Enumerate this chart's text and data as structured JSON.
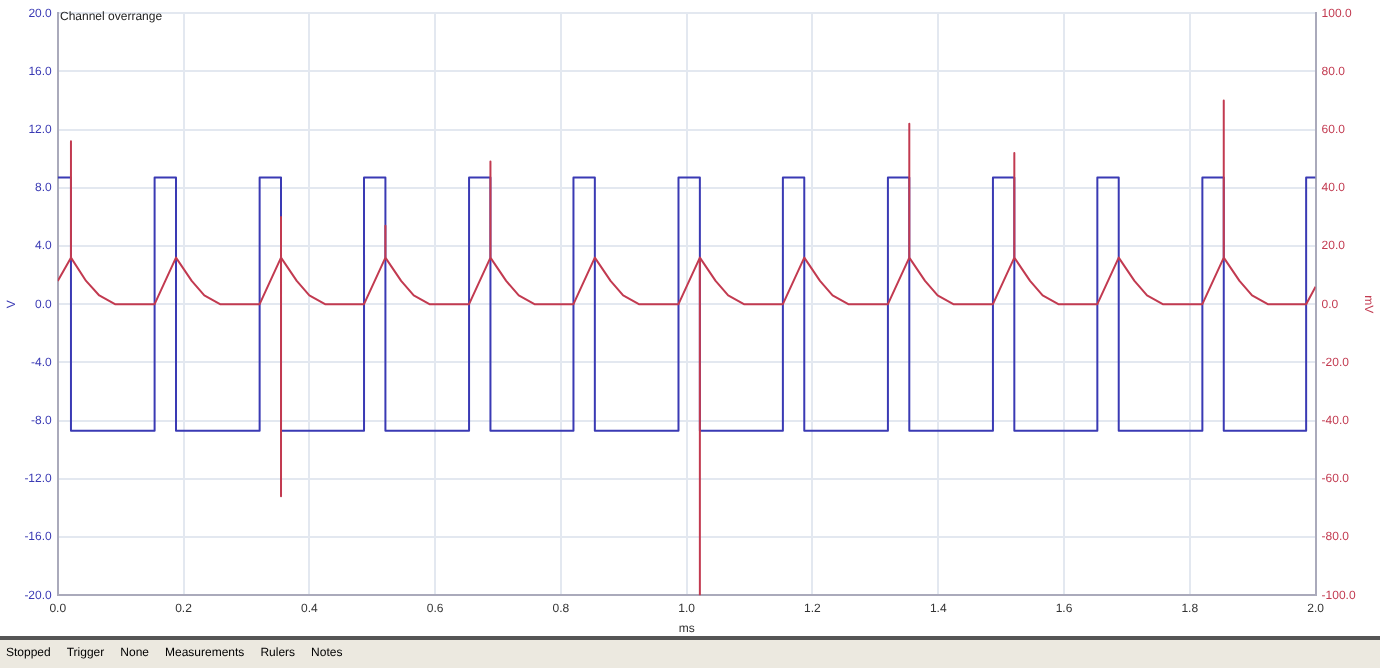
{
  "chart_data": {
    "type": "line",
    "xlabel": "ms",
    "ylabel": "V",
    "y2label": "mV",
    "annotations": [
      "Channel overrange",
      "Stopped",
      "Trigger",
      "None",
      "Measurements",
      "Rulers",
      "Notes"
    ],
    "xlim": [
      0,
      2
    ],
    "xticks": [
      {
        "value": 0,
        "label": "0.0"
      },
      {
        "value": 0.2,
        "label": "0.2"
      },
      {
        "value": 0.4,
        "label": "0.4"
      },
      {
        "value": 0.6,
        "label": "0.6"
      },
      {
        "value": 0.8,
        "label": "0.8"
      },
      {
        "value": 1,
        "label": "1.0"
      },
      {
        "value": 1.2,
        "label": "1.2"
      },
      {
        "value": 1.4,
        "label": "1.4"
      },
      {
        "value": 1.6,
        "label": "1.6"
      },
      {
        "value": 1.8,
        "label": "1.8"
      },
      {
        "value": 2,
        "label": "2.0"
      }
    ],
    "ylim": [
      -20,
      20
    ],
    "yticks": [
      {
        "value": -20,
        "label": "-20.0"
      },
      {
        "value": -16,
        "label": "-16.0"
      },
      {
        "value": -12,
        "label": "-12.0"
      },
      {
        "value": -8,
        "label": "-8.0"
      },
      {
        "value": -4,
        "label": "-4.0"
      },
      {
        "value": 0,
        "label": "0.0"
      },
      {
        "value": 4,
        "label": "4.0"
      },
      {
        "value": 8,
        "label": "8.0"
      },
      {
        "value": 12,
        "label": "12.0"
      },
      {
        "value": 16,
        "label": "16.0"
      },
      {
        "value": 20,
        "label": "20.0"
      }
    ],
    "y2lim": [
      -100,
      100
    ],
    "y2ticks": [
      {
        "value": -100,
        "label": "-100.0"
      },
      {
        "value": -80,
        "label": "-80.0"
      },
      {
        "value": -60,
        "label": "-60.0"
      },
      {
        "value": -40,
        "label": "-40.0"
      },
      {
        "value": -20,
        "label": "-20.0"
      },
      {
        "value": 0,
        "label": "0.0"
      },
      {
        "value": 20,
        "label": "20.0"
      },
      {
        "value": 40,
        "label": "40.0"
      },
      {
        "value": 60,
        "label": "60.0"
      },
      {
        "value": 80,
        "label": "80.0"
      },
      {
        "value": 100,
        "label": "100.0"
      }
    ],
    "grid": true,
    "legend": false,
    "marker": "none",
    "line_style": "solid",
    "series": [
      {
        "color": "#3a3ab4",
        "x": [
          0,
          0.021,
          0.021,
          0.154,
          0.154,
          0.188,
          0.188,
          0.321,
          0.321,
          0.355,
          0.355,
          0.487,
          0.487,
          0.521,
          0.521,
          0.654,
          0.654,
          0.688,
          0.688,
          0.82,
          0.82,
          0.854,
          0.854,
          0.987,
          0.987,
          1.021,
          1.021,
          1.153,
          1.153,
          1.187,
          1.187,
          1.32,
          1.32,
          1.354,
          1.354,
          1.487,
          1.487,
          1.521,
          1.521,
          1.653,
          1.653,
          1.687,
          1.687,
          1.82,
          1.82,
          1.854,
          1.854,
          1.985,
          1.985,
          2.0
        ],
        "values": [
          8.7,
          8.7,
          -8.7,
          -8.7,
          8.7,
          8.7,
          -8.7,
          -8.7,
          8.7,
          8.7,
          -8.7,
          -8.7,
          8.7,
          8.7,
          -8.7,
          -8.7,
          8.7,
          8.7,
          -8.7,
          -8.7,
          8.7,
          8.7,
          -8.7,
          -8.7,
          8.7,
          8.7,
          -8.7,
          -8.7,
          8.7,
          8.7,
          -8.7,
          -8.7,
          8.7,
          8.7,
          -8.7,
          -8.7,
          8.7,
          8.7,
          -8.7,
          -8.7,
          8.7,
          8.7,
          -8.7,
          -8.7,
          8.7,
          8.7,
          -8.7,
          -8.7,
          8.7,
          8.7
        ]
      },
      {
        "color": "#c23a50",
        "axis": "y2",
        "x": [
          0,
          0.021,
          0.021,
          0.021,
          0.045,
          0.066,
          0.091,
          0.154,
          0.188,
          0.213,
          0.233,
          0.258,
          0.321,
          0.355,
          0.355,
          0.355,
          0.355,
          0.38,
          0.4,
          0.425,
          0.487,
          0.521,
          0.521,
          0.521,
          0.546,
          0.566,
          0.591,
          0.654,
          0.688,
          0.688,
          0.688,
          0.713,
          0.733,
          0.758,
          0.82,
          0.854,
          0.879,
          0.899,
          0.924,
          0.987,
          1.021,
          1.021,
          1.021,
          1.046,
          1.066,
          1.091,
          1.153,
          1.187,
          1.212,
          1.232,
          1.257,
          1.32,
          1.354,
          1.354,
          1.354,
          1.379,
          1.399,
          1.424,
          1.487,
          1.521,
          1.521,
          1.521,
          1.546,
          1.566,
          1.591,
          1.653,
          1.687,
          1.712,
          1.732,
          1.757,
          1.82,
          1.854,
          1.854,
          1.854,
          1.879,
          1.899,
          1.924,
          1.985,
          2.0
        ],
        "values": [
          8,
          16,
          56,
          16,
          8,
          3,
          0,
          0,
          16,
          8,
          3,
          0,
          0,
          16,
          -66,
          30,
          16,
          8,
          3,
          0,
          0,
          16,
          27,
          16,
          8,
          3,
          0,
          0,
          16,
          49,
          16,
          8,
          3,
          0,
          0,
          16,
          8,
          3,
          0,
          0,
          16,
          -100,
          16,
          8,
          3,
          0,
          0,
          16,
          8,
          3,
          0,
          0,
          16,
          62,
          16,
          8,
          3,
          0,
          0,
          16,
          52,
          16,
          8,
          3,
          0,
          0,
          16,
          8,
          3,
          0,
          0,
          16,
          70,
          16,
          8,
          3,
          0,
          0,
          6
        ]
      }
    ]
  }
}
